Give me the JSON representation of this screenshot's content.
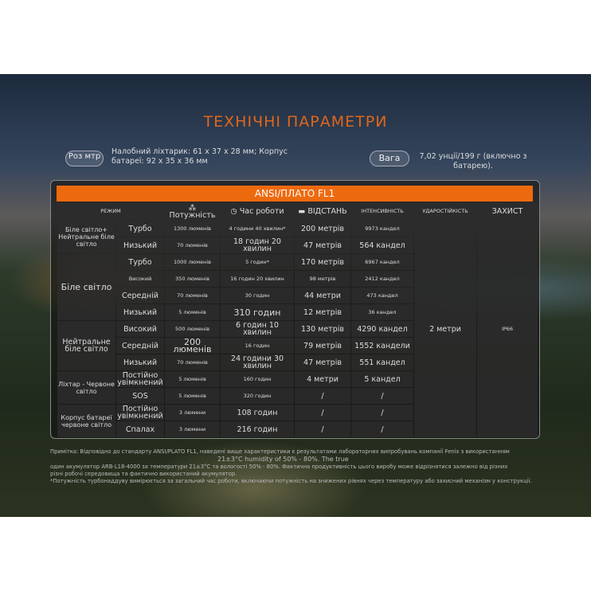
{
  "title": "ТЕХНІЧНІ ПАРАМЕТРИ",
  "size": {
    "label": "Роз мтр",
    "value": "Налобний ліхтарик: 61 x 37 x 28 мм; Корпус батареї: 92 x 35 x 36 мм"
  },
  "weight": {
    "label": "Вага",
    "value": "7,02 унції/199 г (включно з батарею)."
  },
  "table": {
    "title": "ANSI/ПЛАТО FL1",
    "headers": [
      "РЕЖИМ",
      "Потужність",
      "Час роботи",
      "ВІДСТАНЬ",
      "ІНТЕНСИВНІСТЬ",
      "УДАРОСТІЙКІСТЬ",
      "ЗАХИСТ"
    ],
    "groups": [
      "Біле світло+ Нейтральне біле світло",
      "Біле світло",
      "Нейтральне біле світло",
      "Ліхтар - Червоне світло",
      "Корпус батареї червоне світло"
    ],
    "rows": [
      [
        "Турбо",
        "1300 люменів",
        "4 години 40 хвилин*",
        "200 метрів",
        "9973 кандел"
      ],
      [
        "Низький",
        "70 люменів",
        "18 годин 20 хвилин",
        "47 метрів",
        "564 кандел"
      ],
      [
        "Турбо",
        "1000 люменів",
        "5 годин*",
        "170 метрів",
        "6967 кандел"
      ],
      [
        "Високий",
        "350 люменів",
        "16 годин 20 хвилин",
        "98 метрів",
        "2412 кандел"
      ],
      [
        "Середній",
        "70 люменів",
        "30 годин",
        "44 метри",
        "473 кандел"
      ],
      [
        "Низький",
        "5 люменів",
        "310 годин",
        "12 метрів",
        "36 кандел"
      ],
      [
        "Високий",
        "500 люменів",
        "6 годин 10 хвилин",
        "130 метрів",
        "4290 кандел"
      ],
      [
        "Середній",
        "200 люменів",
        "16 годин",
        "79 метрів",
        "1552 кандели"
      ],
      [
        "Низький",
        "70 люменів",
        "24 години 30 хвилин",
        "47 метрів",
        "551 кандел"
      ],
      [
        "Постійно увімкнений",
        "5 люменів",
        "160 годин",
        "4 метри",
        "5 кандел"
      ],
      [
        "SOS",
        "5 люменів",
        "320 годин",
        "/",
        "/"
      ],
      [
        "Постійно увімкнений",
        "3 люмени",
        "108 годин",
        "/",
        "/"
      ],
      [
        "Спалах",
        "3 люмени",
        "216 годин",
        "/",
        "/"
      ]
    ],
    "impact": "2 метри",
    "protection": "IP66"
  },
  "notes": [
    "Примітка: Відповідно до стандарту ANSI/PLATO FL1, наведені вище характеристики є результатами лабораторних випробувань компанії Fenix з використанням",
    "21±3°C humidity of 50% - 80%. The true",
    "один акумулятор ARB-L18-4000 за температури 21±3°C та вологості 50% - 80%. Фактична продуктивність цього виробу може відрізнятися залежно від різних",
    "різні робочі середовища та фактично використаний акумулятор.",
    "*Потужність турбонаддуву вимірюється за загальний час роботи, включаючи потужність на знижених рівнях через температуру або захисний механізм у конструкції."
  ],
  "colors": {
    "accent": "#ee6a0e"
  }
}
